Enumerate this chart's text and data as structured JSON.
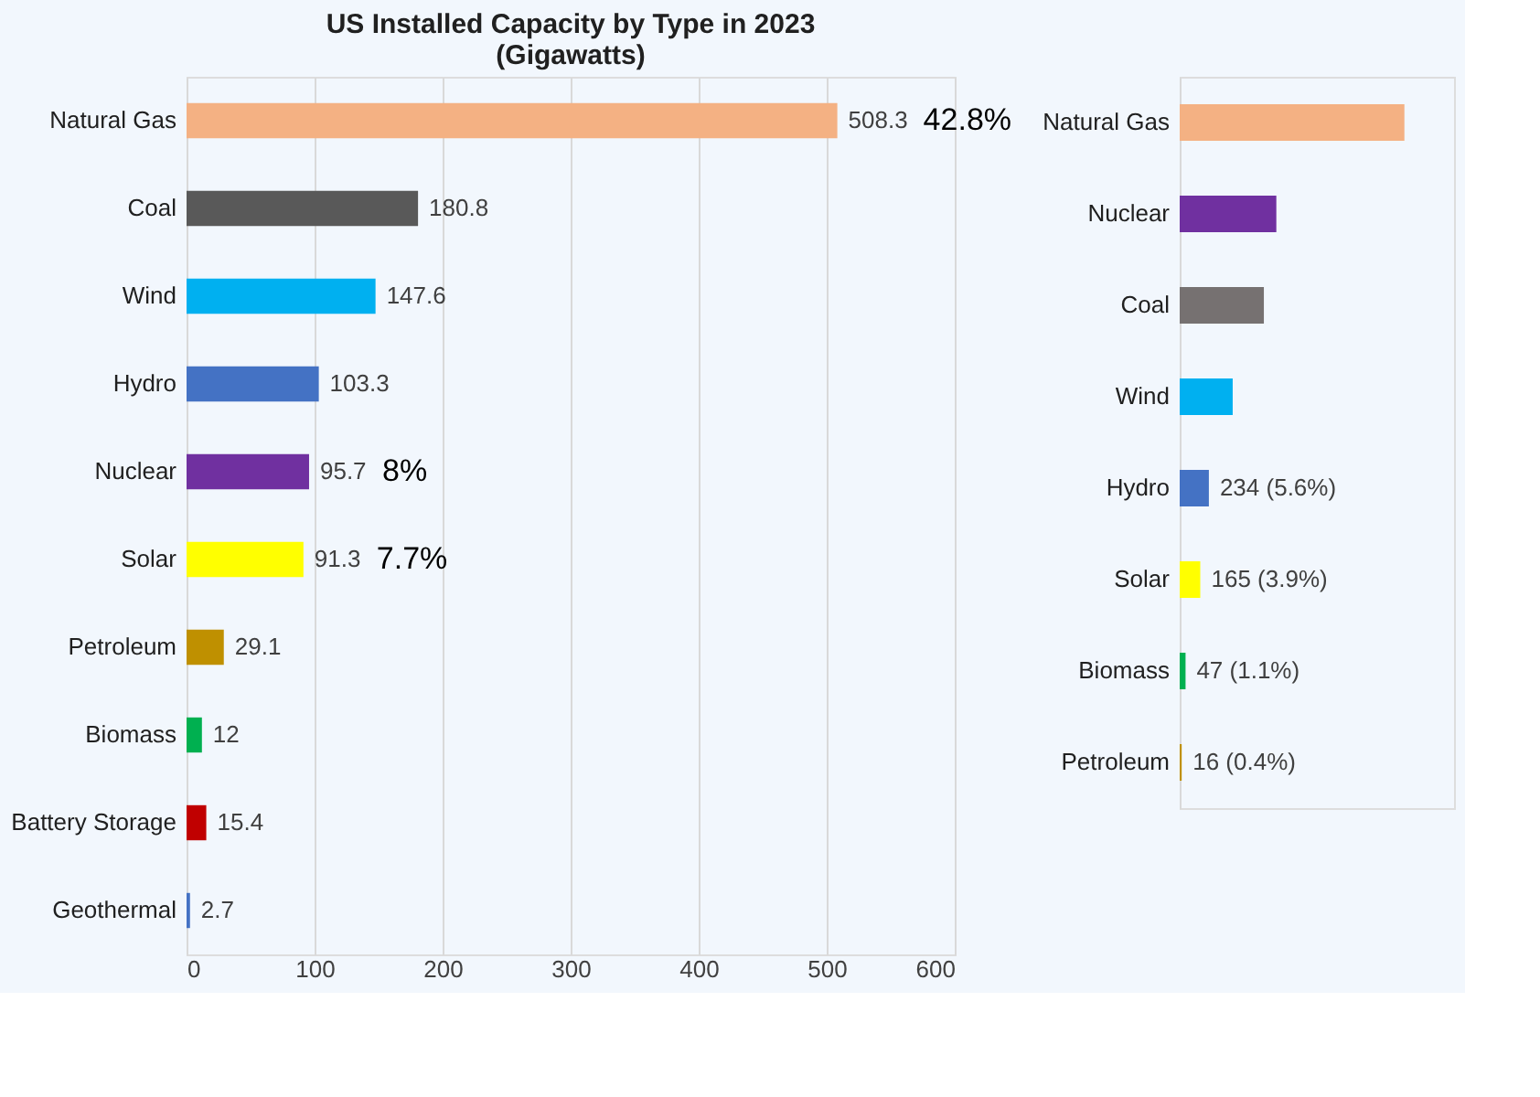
{
  "chart_data": [
    {
      "type": "bar",
      "orientation": "horizontal",
      "title": [
        "US Installed Capacity by Type in 2023",
        "(Gigawatts)"
      ],
      "categories": [
        "Natural Gas",
        "Coal",
        "Wind",
        "Hydro",
        "Nuclear",
        "Solar",
        "Petroleum",
        "Biomass",
        "Battery Storage",
        "Geothermal"
      ],
      "values": [
        508.3,
        180.8,
        147.6,
        103.3,
        95.7,
        91.3,
        29.1,
        12,
        15.4,
        2.7
      ],
      "colors": [
        "#f4b183",
        "#595959",
        "#00b0f0",
        "#4472c4",
        "#7030a0",
        "#ffff00",
        "#bf9000",
        "#00b050",
        "#c00000",
        "#4472c4"
      ],
      "xlim": [
        0,
        600
      ],
      "xticks": [
        0,
        100,
        200,
        300,
        400,
        500,
        600
      ],
      "grid": "x",
      "data_labels": true,
      "annotations": [
        {
          "text": "42.8%",
          "x": 508.3,
          "y": "Natural Gas"
        },
        {
          "text": "8%",
          "x": 95.7,
          "y": "Nuclear"
        },
        {
          "text": "7.7%",
          "x": 91.3,
          "y": "Solar"
        }
      ]
    },
    {
      "type": "bar",
      "orientation": "horizontal",
      "categories": [
        "Natural Gas",
        "Nuclear",
        "Coal",
        "Wind",
        "Hydro",
        "Solar",
        "Biomass",
        "Petroleum"
      ],
      "values": [
        1802,
        775,
        675,
        425,
        234,
        165,
        47,
        16
      ],
      "xlim": [
        0,
        2200
      ],
      "tick_labels": "y",
      "value_labels": [
        null,
        null,
        null,
        null,
        "234 (5.6%)",
        "165 (3.9%)",
        "47 (1.1%)",
        "16 (0.4%)"
      ],
      "colors": [
        "#f4b183",
        "#7030a0",
        "#767171",
        "#00b0f0",
        "#4472c4",
        "#ffff00",
        "#00b050",
        "#bf9000"
      ]
    }
  ]
}
